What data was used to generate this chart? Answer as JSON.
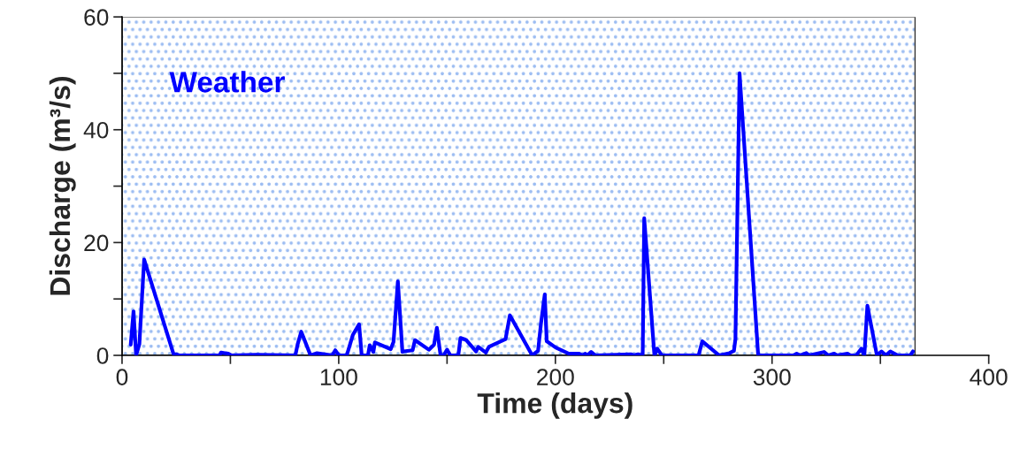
{
  "chart_data": {
    "type": "line",
    "xlabel": "Time (days)",
    "ylabel": "Discharge (m³/s)",
    "xlim": [
      0,
      400
    ],
    "xticks": [
      0,
      {
        "value": 50,
        "label": null
      },
      100,
      {
        "value": 150,
        "label": null
      },
      200,
      {
        "value": 250,
        "label": null
      },
      300,
      {
        "value": 350,
        "label": null
      },
      400
    ],
    "ylim": [
      0,
      60
    ],
    "yticks": [
      0,
      {
        "value": 10,
        "label": null
      },
      20,
      {
        "value": 30,
        "label": null
      },
      40,
      {
        "value": 50,
        "label": null
      },
      60
    ],
    "grid": false,
    "legend": false,
    "marker": "none",
    "line_style": "solid",
    "bands": [
      {
        "axis": "x",
        "from": 0,
        "to": 366,
        "label": null,
        "color": "#9bbcf2"
      }
    ],
    "series": [
      {
        "name": "Weather",
        "color": "#0000ff",
        "x": [
          4,
          5.3,
          6.5,
          8,
          10.2,
          23.7,
          26.5,
          45,
          45.7,
          49,
          50.6,
          62,
          80,
          81,
          82.7,
          87,
          90,
          97,
          98.4,
          100,
          103.7,
          106.5,
          109.4,
          110.6,
          113.5,
          114.3,
          116,
          116.7,
          124,
          125.3,
          127.3,
          129.4,
          130,
          134.1,
          135.2,
          141.6,
          144,
          145.3,
          147,
          148.4,
          150,
          151.5,
          155.2,
          156.2,
          158.9,
          163.4,
          164.4,
          167.9,
          169.3,
          177,
          179,
          189.3,
          192,
          193.3,
          195.1,
          196,
          200.1,
          206.2,
          211,
          212.4,
          213.8,
          214.7,
          216.5,
          218.5,
          228.7,
          234.8,
          236.2,
          238.2,
          239.6,
          240.3,
          241,
          245.7,
          247,
          249.1,
          258,
          266.1,
          267.8,
          275.6,
          280.4,
          282.4,
          283.1,
          285,
          293.6,
          309.7,
          311.4,
          313,
          315.8,
          317.1,
          324,
          326,
          328.7,
          330,
          334.8,
          336.2,
          338.9,
          341.2,
          342.6,
          344,
          348.4,
          350.5,
          352.5,
          354.6,
          358,
          363.8,
          365
        ],
        "values": [
          1.9,
          7.8,
          0,
          2,
          17,
          0.3,
          0,
          0,
          0.5,
          0.3,
          0,
          0.1,
          0,
          1.9,
          4.2,
          0,
          0.4,
          0,
          0.9,
          0,
          0,
          3.6,
          5.5,
          0,
          0,
          1.8,
          0.6,
          2.3,
          1.1,
          2.4,
          13.1,
          0.6,
          0.7,
          0.9,
          2.7,
          1,
          1.9,
          4.9,
          0,
          0,
          1,
          0,
          0,
          3.1,
          2.7,
          0.7,
          1.5,
          0.5,
          1.5,
          2.9,
          7.1,
          0,
          0.8,
          5.5,
          10.8,
          2.5,
          1.4,
          0.3,
          0.3,
          0,
          0.3,
          0,
          0.6,
          0,
          0.1,
          0.2,
          0,
          0.2,
          0,
          0.2,
          24.3,
          0,
          1.2,
          0,
          0,
          0,
          2.5,
          0,
          0.4,
          0.8,
          2.9,
          50,
          0,
          0,
          0.3,
          0,
          0.4,
          0,
          0.6,
          0,
          0.3,
          0,
          0.3,
          0,
          0,
          1.2,
          0,
          8.8,
          0,
          0.7,
          0,
          0.7,
          0,
          0,
          0.7
        ]
      }
    ]
  }
}
